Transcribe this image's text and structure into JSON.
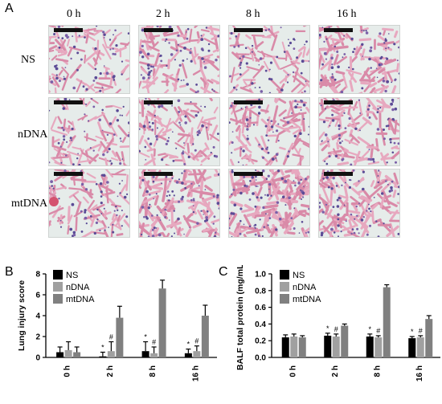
{
  "panel_labels": {
    "a": "A",
    "b": "B",
    "c": "C"
  },
  "panel_a": {
    "column_headers": [
      "0 h",
      "2 h",
      "8 h",
      "16 h"
    ],
    "row_labels": [
      "NS",
      "nDNA",
      "mtDNA"
    ]
  },
  "chart_data": [
    {
      "type": "bar",
      "panel": "B",
      "ylabel": "Lung injury score",
      "categories": [
        "0 h",
        "2 h",
        "8 h",
        "16 h"
      ],
      "ylim": [
        0,
        8
      ],
      "yticks": [
        "0",
        "2",
        "4",
        "6",
        "8"
      ],
      "series": [
        {
          "name": "NS",
          "color": "#000000",
          "values": [
            0.5,
            0.1,
            0.6,
            0.4
          ],
          "errors": [
            0.5,
            0.4,
            0.9,
            0.4
          ]
        },
        {
          "name": "nDNA",
          "color": "#a0a0a0",
          "values": [
            0.7,
            0.6,
            0.4,
            0.6
          ],
          "errors": [
            0.8,
            0.9,
            0.6,
            0.5
          ]
        },
        {
          "name": "mtDNA",
          "color": "#808080",
          "values": [
            0.5,
            3.8,
            6.6,
            4.0
          ],
          "errors": [
            0.5,
            1.1,
            0.8,
            1.0
          ]
        }
      ],
      "annotations": [
        {
          "category": "2 h",
          "series": "NS",
          "text": "*"
        },
        {
          "category": "2 h",
          "series": "nDNA",
          "text": "#"
        },
        {
          "category": "8 h",
          "series": "NS",
          "text": "*"
        },
        {
          "category": "8 h",
          "series": "nDNA",
          "text": "#"
        },
        {
          "category": "16 h",
          "series": "NS",
          "text": "*"
        },
        {
          "category": "16 h",
          "series": "nDNA",
          "text": "#"
        }
      ],
      "legend": "top-left"
    },
    {
      "type": "bar",
      "panel": "C",
      "ylabel": "BALF total protein (mg/mL)",
      "categories": [
        "0 h",
        "2 h",
        "8 h",
        "16 h"
      ],
      "ylim": [
        0,
        1.0
      ],
      "yticks": [
        "0.0",
        "0.2",
        "0.4",
        "0.6",
        "0.8",
        "1.0"
      ],
      "series": [
        {
          "name": "NS",
          "color": "#000000",
          "values": [
            0.24,
            0.26,
            0.25,
            0.23
          ],
          "errors": [
            0.03,
            0.03,
            0.03,
            0.02
          ]
        },
        {
          "name": "nDNA",
          "color": "#a0a0a0",
          "values": [
            0.25,
            0.25,
            0.24,
            0.24
          ],
          "errors": [
            0.03,
            0.03,
            0.02,
            0.02
          ]
        },
        {
          "name": "mtDNA",
          "color": "#808080",
          "values": [
            0.24,
            0.38,
            0.84,
            0.46
          ],
          "errors": [
            0.02,
            0.02,
            0.03,
            0.04
          ]
        }
      ],
      "annotations": [
        {
          "category": "2 h",
          "series": "NS",
          "text": "*"
        },
        {
          "category": "2 h",
          "series": "nDNA",
          "text": "#"
        },
        {
          "category": "8 h",
          "series": "NS",
          "text": "*"
        },
        {
          "category": "8 h",
          "series": "nDNA",
          "text": "#"
        },
        {
          "category": "16 h",
          "series": "NS",
          "text": "*"
        },
        {
          "category": "16 h",
          "series": "nDNA",
          "text": "#"
        }
      ],
      "legend": "top-left"
    }
  ]
}
